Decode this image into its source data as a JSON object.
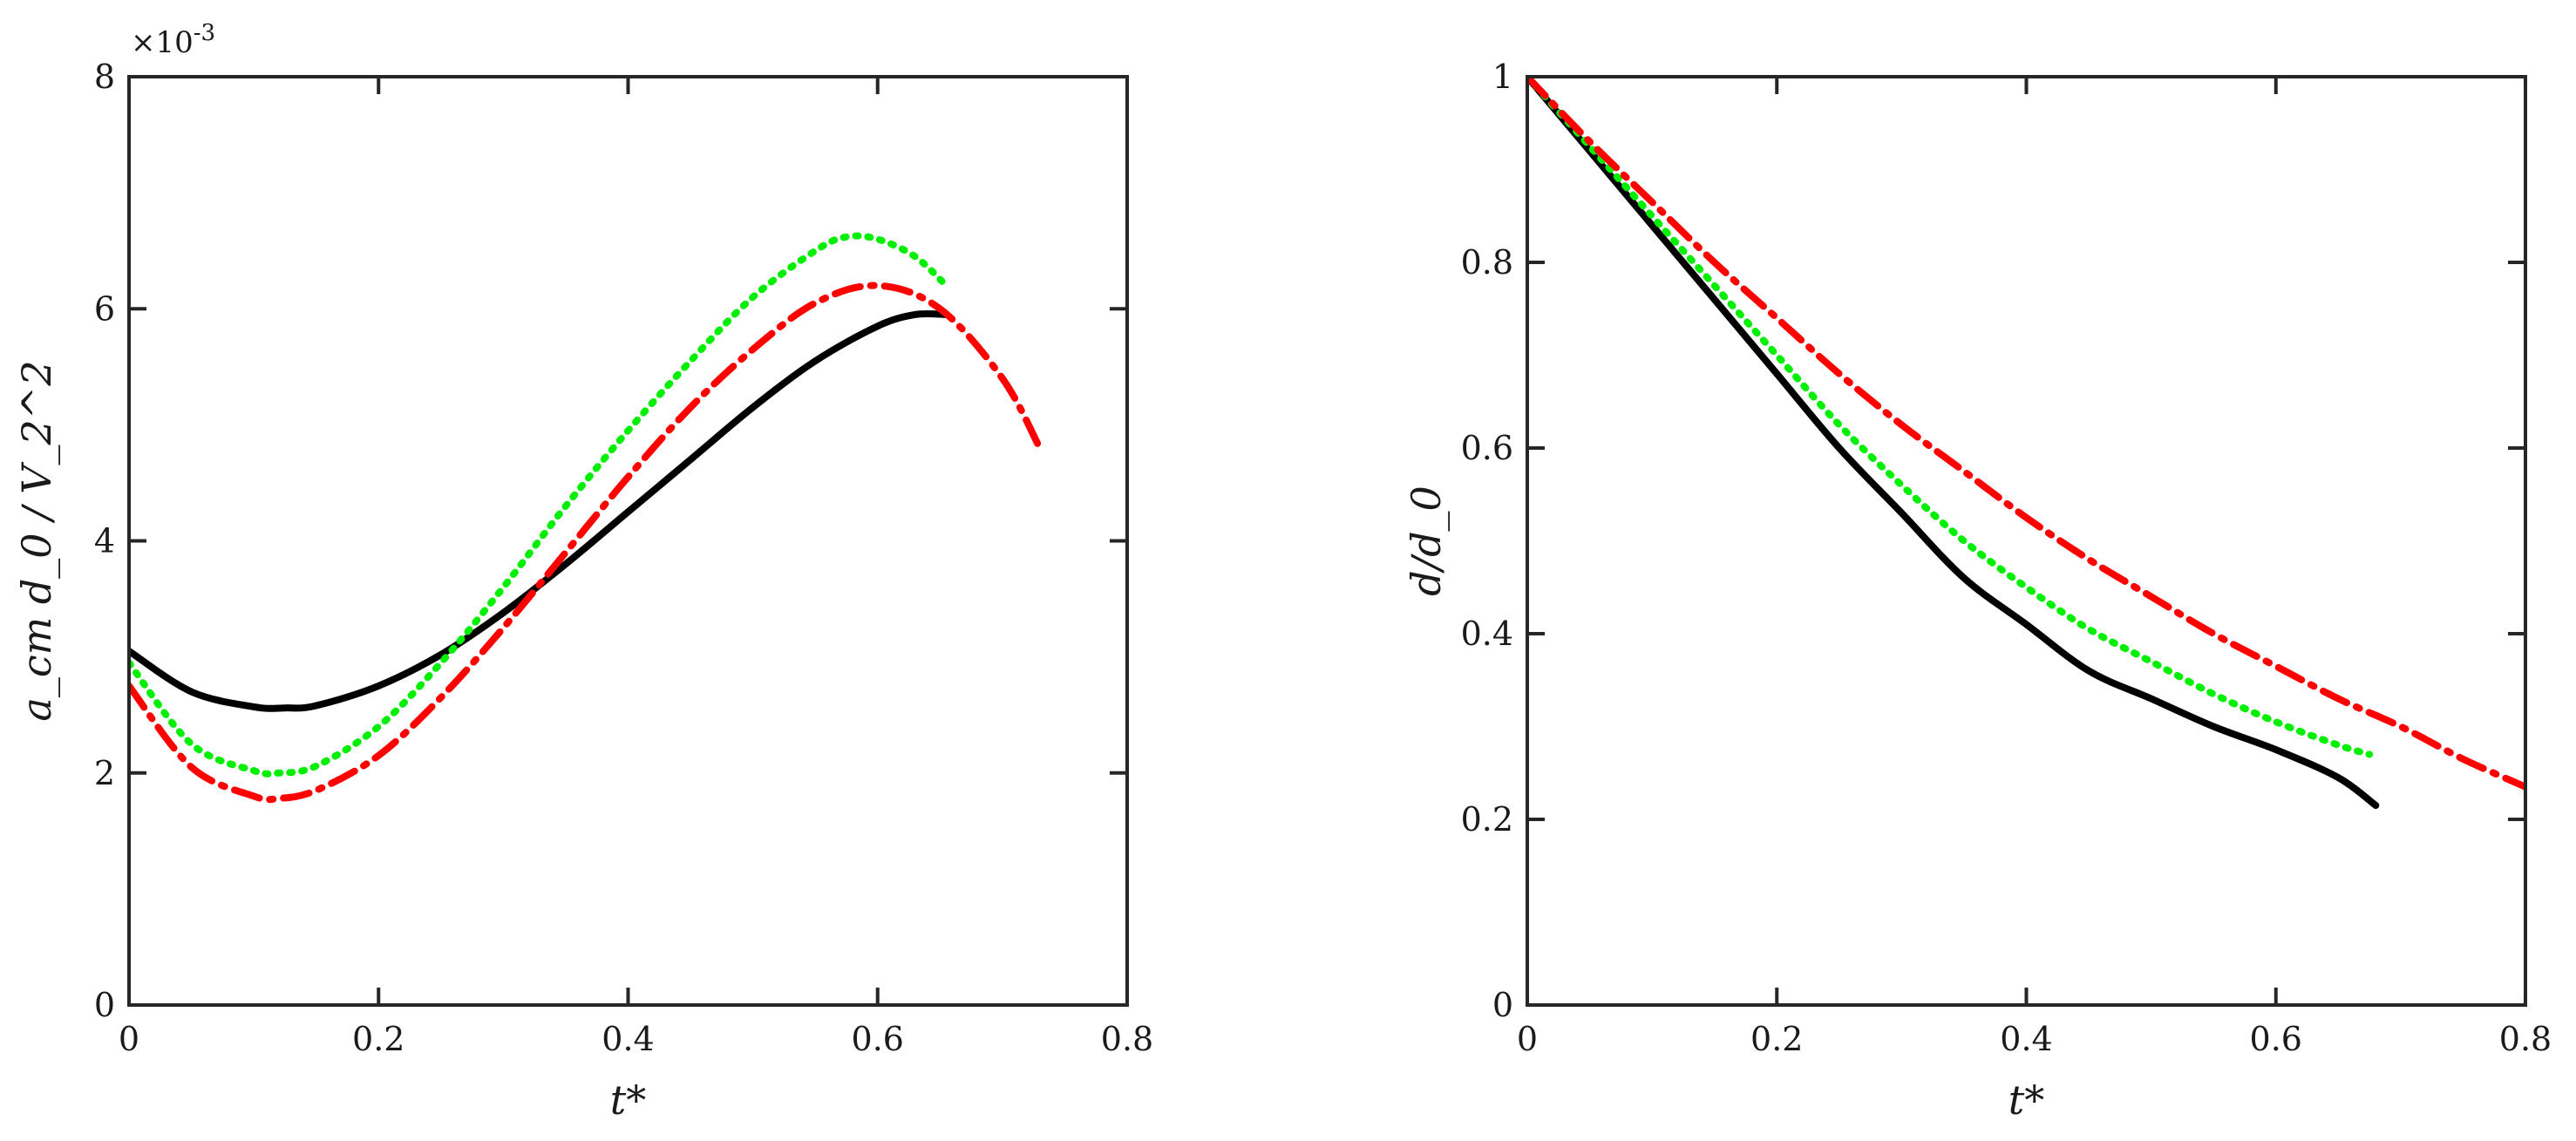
{
  "chart_data": [
    {
      "type": "line",
      "title": "",
      "xlabel": "t*",
      "ylabel": "a_cm d_0 / V_2^2",
      "y_multiplier_label": "×10",
      "y_multiplier_exponent": "-3",
      "xlim": [
        0,
        0.8
      ],
      "ylim": [
        0,
        8
      ],
      "xticks": [
        0,
        0.2,
        0.4,
        0.6,
        0.8
      ],
      "xtick_labels": [
        "0",
        "0.2",
        "0.4",
        "0.6",
        "0.8"
      ],
      "yticks": [
        0,
        2,
        4,
        6,
        8
      ],
      "ytick_labels": [
        "0",
        "2",
        "4",
        "6",
        "8"
      ],
      "grid": false,
      "series": [
        {
          "name": "solid-black",
          "color": "#000000",
          "style": "solid",
          "x": [
            0,
            0.05,
            0.1,
            0.125,
            0.15,
            0.2,
            0.25,
            0.3,
            0.35,
            0.4,
            0.45,
            0.5,
            0.55,
            0.6,
            0.63,
            0.655
          ],
          "y": [
            3.05,
            2.7,
            2.57,
            2.56,
            2.58,
            2.75,
            3.02,
            3.38,
            3.8,
            4.25,
            4.7,
            5.15,
            5.55,
            5.85,
            5.95,
            5.95
          ]
        },
        {
          "name": "dotted-green",
          "color": "#00ee00",
          "style": "dotted",
          "x": [
            0,
            0.05,
            0.1,
            0.12,
            0.15,
            0.2,
            0.25,
            0.3,
            0.35,
            0.4,
            0.45,
            0.5,
            0.55,
            0.575,
            0.6,
            0.63,
            0.655
          ],
          "y": [
            2.95,
            2.25,
            2.02,
            2.0,
            2.06,
            2.4,
            2.95,
            3.6,
            4.3,
            4.95,
            5.55,
            6.1,
            6.5,
            6.62,
            6.6,
            6.45,
            6.2
          ]
        },
        {
          "name": "dashdot-red",
          "color": "#ff0000",
          "style": "dashdot",
          "x": [
            0,
            0.05,
            0.1,
            0.12,
            0.15,
            0.2,
            0.25,
            0.3,
            0.35,
            0.4,
            0.45,
            0.5,
            0.55,
            0.6,
            0.65,
            0.7,
            0.73
          ],
          "y": [
            2.75,
            2.05,
            1.8,
            1.78,
            1.85,
            2.15,
            2.65,
            3.25,
            3.9,
            4.55,
            5.15,
            5.65,
            6.05,
            6.2,
            6.0,
            5.4,
            4.8
          ]
        }
      ]
    },
    {
      "type": "line",
      "title": "",
      "xlabel": "t*",
      "ylabel": "d/d_0",
      "xlim": [
        0,
        0.8
      ],
      "ylim": [
        0,
        1
      ],
      "xticks": [
        0,
        0.2,
        0.4,
        0.6,
        0.8
      ],
      "xtick_labels": [
        "0",
        "0.2",
        "0.4",
        "0.6",
        "0.8"
      ],
      "yticks": [
        0,
        0.2,
        0.4,
        0.6,
        0.8,
        1
      ],
      "ytick_labels": [
        "0",
        "0.2",
        "0.4",
        "0.6",
        "0.8",
        "1"
      ],
      "grid": false,
      "series": [
        {
          "name": "solid-black",
          "color": "#000000",
          "style": "solid",
          "x": [
            0,
            0.05,
            0.1,
            0.15,
            0.2,
            0.25,
            0.3,
            0.35,
            0.4,
            0.45,
            0.5,
            0.55,
            0.6,
            0.65,
            0.68
          ],
          "y": [
            1.0,
            0.92,
            0.84,
            0.76,
            0.68,
            0.6,
            0.53,
            0.46,
            0.41,
            0.36,
            0.33,
            0.3,
            0.275,
            0.245,
            0.215
          ]
        },
        {
          "name": "dotted-green",
          "color": "#00ee00",
          "style": "dotted",
          "x": [
            0,
            0.05,
            0.1,
            0.15,
            0.2,
            0.25,
            0.3,
            0.35,
            0.4,
            0.45,
            0.5,
            0.55,
            0.6,
            0.65,
            0.675
          ],
          "y": [
            1.0,
            0.925,
            0.85,
            0.775,
            0.7,
            0.625,
            0.56,
            0.5,
            0.45,
            0.405,
            0.37,
            0.335,
            0.305,
            0.28,
            0.27
          ]
        },
        {
          "name": "dashdot-red",
          "color": "#ff0000",
          "style": "dashdot",
          "x": [
            0,
            0.05,
            0.1,
            0.15,
            0.2,
            0.25,
            0.3,
            0.35,
            0.4,
            0.45,
            0.5,
            0.55,
            0.6,
            0.65,
            0.7,
            0.75,
            0.8
          ],
          "y": [
            1.0,
            0.93,
            0.865,
            0.8,
            0.74,
            0.68,
            0.625,
            0.575,
            0.525,
            0.48,
            0.44,
            0.4,
            0.365,
            0.33,
            0.3,
            0.265,
            0.235
          ]
        }
      ]
    }
  ]
}
